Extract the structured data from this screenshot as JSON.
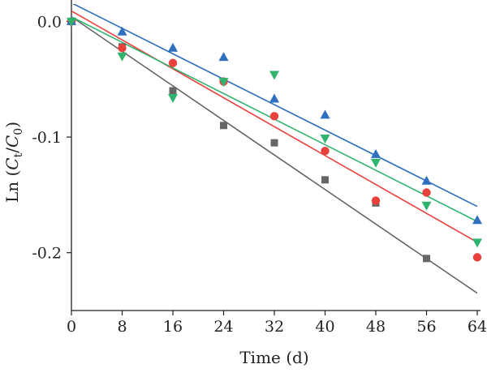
{
  "chart_data": {
    "type": "scatter",
    "xlabel": "Time (d)",
    "ylabel": {
      "prefix": "Ln (",
      "c1": "C",
      "s1": "t",
      "slash": "/",
      "c2": "C",
      "s2": "0",
      "suffix": ")"
    },
    "xlim": [
      0,
      64
    ],
    "ylim": [
      -0.25,
      0.015
    ],
    "xticks": [
      0,
      8,
      16,
      24,
      32,
      40,
      48,
      56,
      64
    ],
    "yticks": [
      0.0,
      -0.1,
      -0.2
    ],
    "ytick_labels": [
      "0.0",
      "-0.1",
      "-0.2"
    ],
    "grid": false,
    "legend": "none",
    "series": [
      {
        "marker": "square",
        "color": "#666666",
        "x": [
          0,
          8,
          16,
          24,
          32,
          40,
          48,
          56
        ],
        "y": [
          0.0,
          -0.022,
          -0.06,
          -0.09,
          -0.105,
          -0.137,
          -0.157,
          -0.205
        ],
        "fit": {
          "x": [
            0,
            64
          ],
          "y": [
            0.004,
            -0.235
          ]
        }
      },
      {
        "marker": "circle",
        "color": "#e8413c",
        "x": [
          0,
          8,
          16,
          24,
          32,
          40,
          48,
          56,
          64
        ],
        "y": [
          0.0,
          -0.023,
          -0.036,
          -0.052,
          -0.082,
          -0.112,
          -0.155,
          -0.148,
          -0.204
        ],
        "fit": {
          "x": [
            0,
            64
          ],
          "y": [
            0.009,
            -0.191
          ]
        }
      },
      {
        "marker": "triangle-up",
        "color": "#2e6fbf",
        "x": [
          0,
          8,
          16,
          24,
          32,
          40,
          48,
          56,
          64
        ],
        "y": [
          0.0,
          -0.009,
          -0.023,
          -0.031,
          -0.067,
          -0.081,
          -0.115,
          -0.138,
          -0.172
        ],
        "fit": {
          "x": [
            0,
            64
          ],
          "y": [
            0.016,
            -0.16
          ]
        }
      },
      {
        "marker": "triangle-down",
        "color": "#2fb36f",
        "x": [
          0,
          8,
          16,
          24,
          32,
          40,
          48,
          56,
          64
        ],
        "y": [
          0.0,
          -0.03,
          -0.066,
          -0.052,
          -0.046,
          -0.101,
          -0.122,
          -0.159,
          -0.191
        ],
        "fit": {
          "x": [
            0,
            64
          ],
          "y": [
            0.004,
            -0.173
          ]
        }
      }
    ]
  }
}
